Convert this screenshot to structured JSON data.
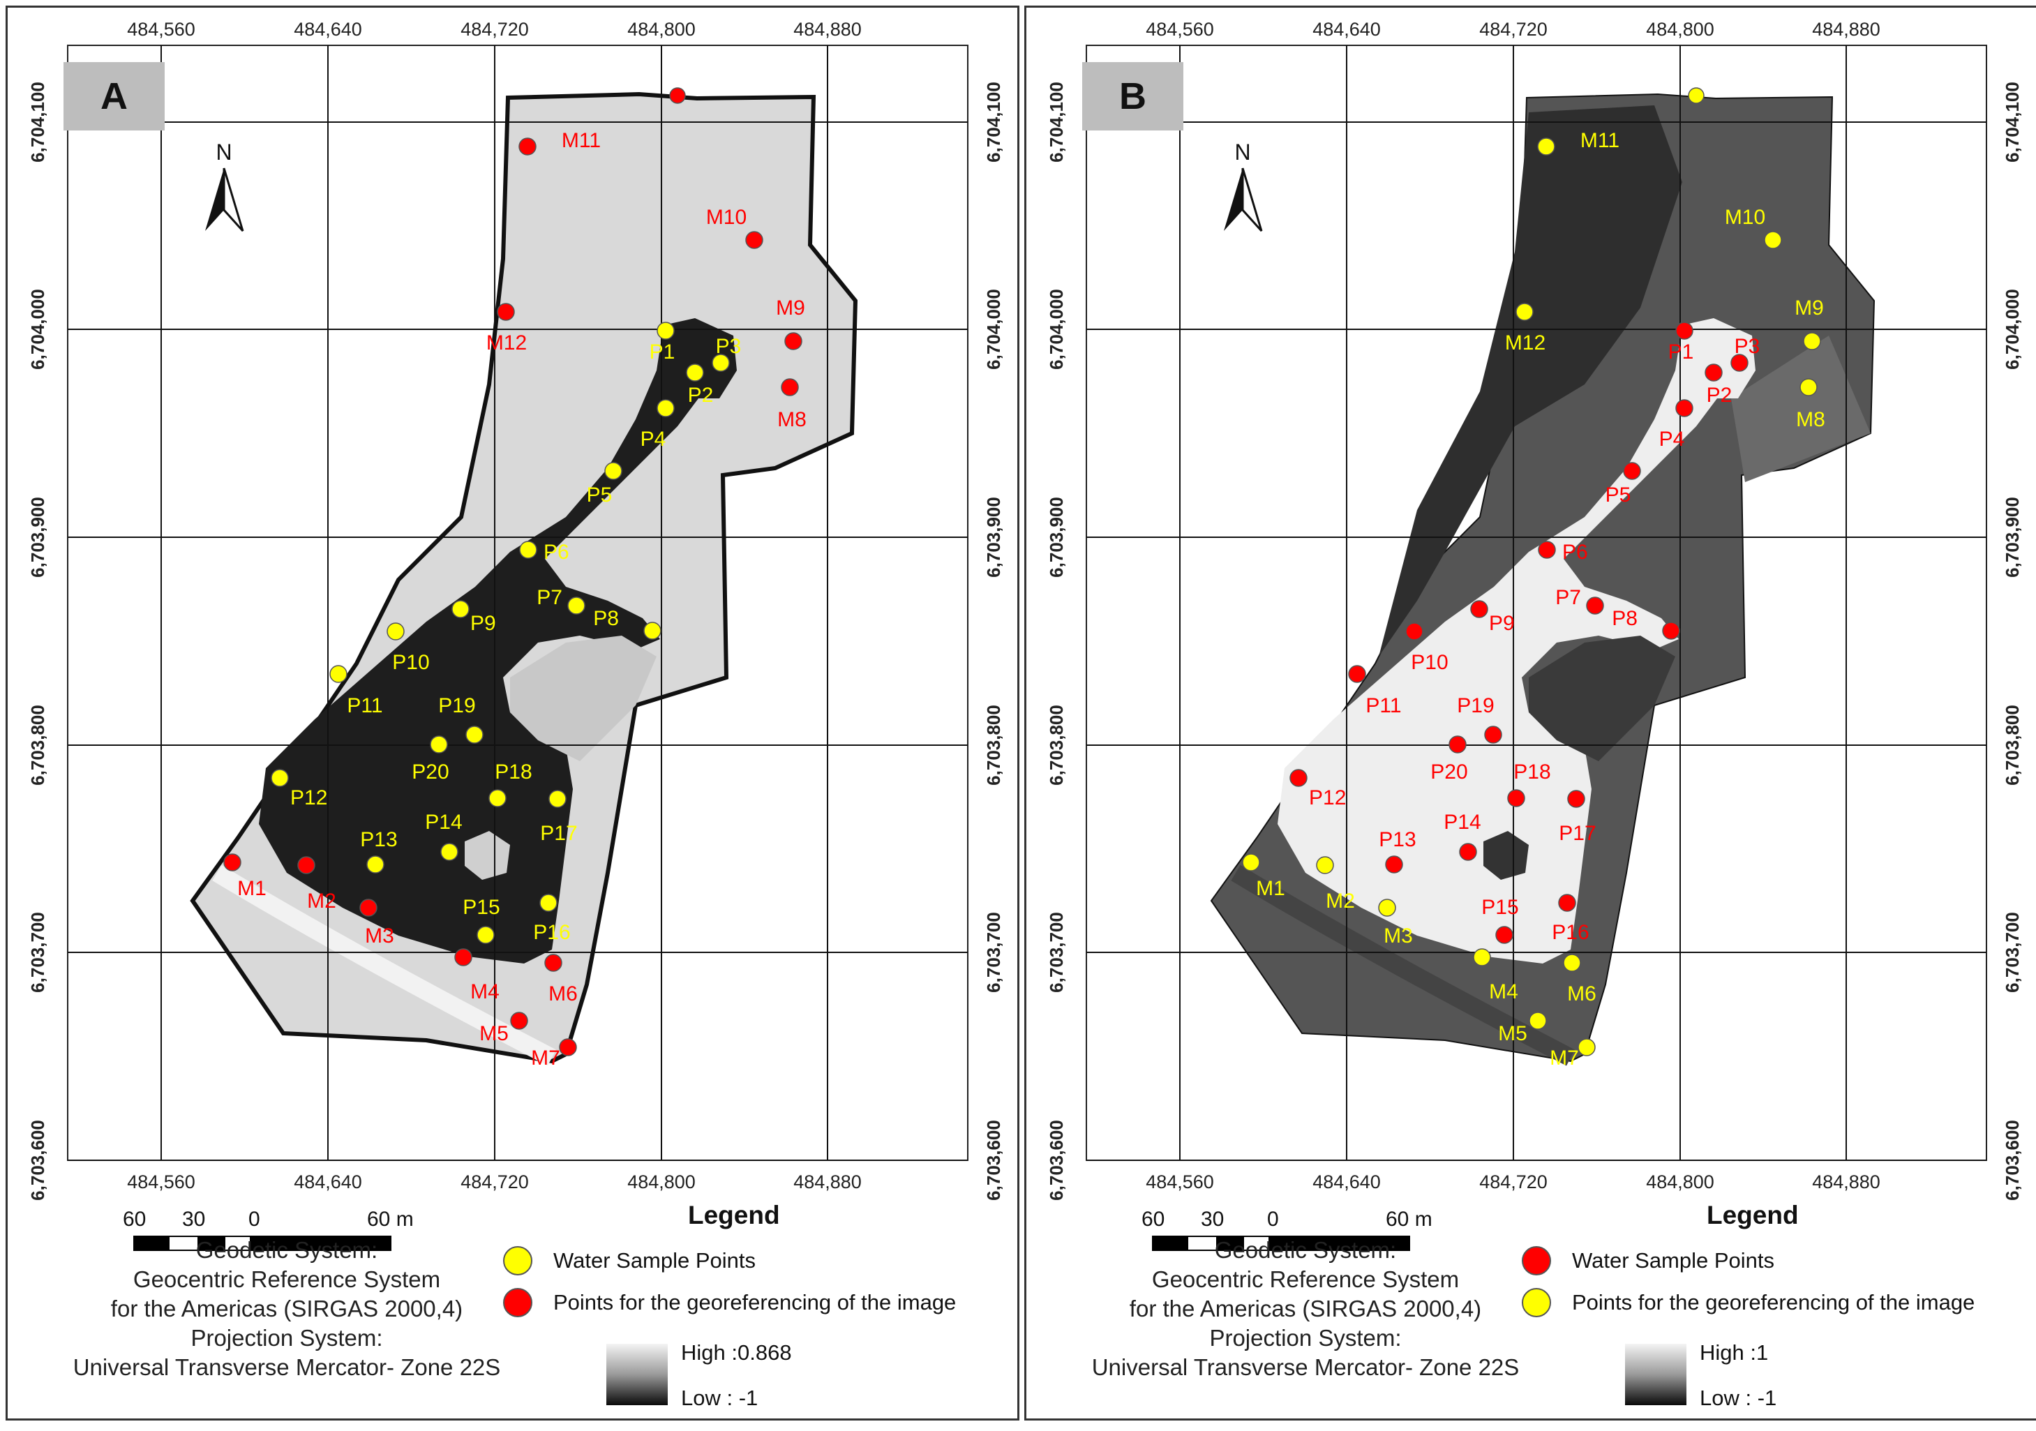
{
  "panels": [
    {
      "id": "A",
      "letter": "A",
      "water_color": "#ffff00",
      "geo_color": "#ff0000",
      "legend": {
        "title": "Legend",
        "item1_label": "Water Sample Points",
        "item1_color": "#ffff00",
        "item2_label": "Points for the georeferencing of the image",
        "item2_color": "#ff0000",
        "high_label": "High :0.868",
        "low_label": "Low : -1"
      }
    },
    {
      "id": "B",
      "letter": "B",
      "water_color": "#ff0000",
      "geo_color": "#ffff00",
      "legend": {
        "title": "Legend",
        "item1_label": "Water Sample Points",
        "item1_color": "#ff0000",
        "item2_label": "Points for the georeferencing of the image",
        "item2_color": "#ffff00",
        "high_label": "High :1",
        "low_label": "Low : -1"
      }
    }
  ],
  "x_ticks": [
    "484,560",
    "484,640",
    "484,720",
    "484,800",
    "484,880"
  ],
  "y_ticks": [
    "6,704,100",
    "6,704,000",
    "6,703,900",
    "6,703,800",
    "6,703,700",
    "6,703,600"
  ],
  "north_label": "N",
  "scale": {
    "l60": "60",
    "l30": "30",
    "l0": "0",
    "l60m": "60 m"
  },
  "geo_caption": [
    "Geodetic System:",
    "Geocentric Reference System",
    "for the Americas (SIRGAS 2000,4)",
    "Projection System:",
    "Universal Transverse Mercator- Zone 22S"
  ],
  "water_points": [
    "P1",
    "P2",
    "P3",
    "P4",
    "P5",
    "P6",
    "P7",
    "P8",
    "P9",
    "P10",
    "P11",
    "P12",
    "P13",
    "P14",
    "P15",
    "P16",
    "P17",
    "P18",
    "P19",
    "P20"
  ],
  "geo_points": [
    "M1",
    "M2",
    "M3",
    "M4",
    "M5",
    "M6",
    "M7",
    "M8",
    "M9",
    "M10",
    "M11",
    "M12"
  ]
}
